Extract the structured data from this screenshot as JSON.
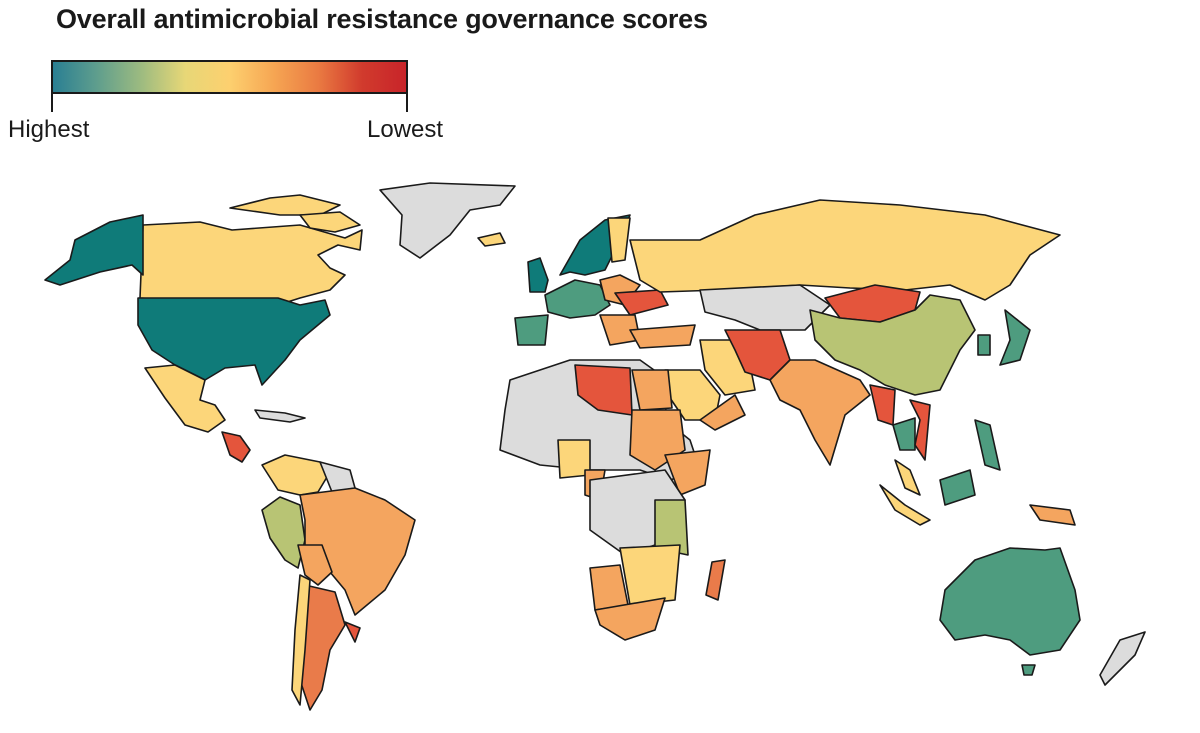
{
  "title": "Overall antimicrobial resistance governance scores",
  "legend": {
    "high_label": "Highest",
    "low_label": "Lowest",
    "gradient_stops": [
      "#2a7f93",
      "#5f9e8d",
      "#9dbb80",
      "#e7d777",
      "#fdd06f",
      "#f6a653",
      "#ea7b42",
      "#d13b2d",
      "#c8242a"
    ]
  },
  "colors": {
    "no_data": "#dcdcdc",
    "highest": "#0f7b79",
    "high": "#4e9c7f",
    "mid_high": "#b8c474",
    "mid": "#fcd67a",
    "mid_low": "#f4a55f",
    "low": "#e97b4a",
    "lowest": "#e4553c",
    "border": "#1a1a1a"
  }
}
